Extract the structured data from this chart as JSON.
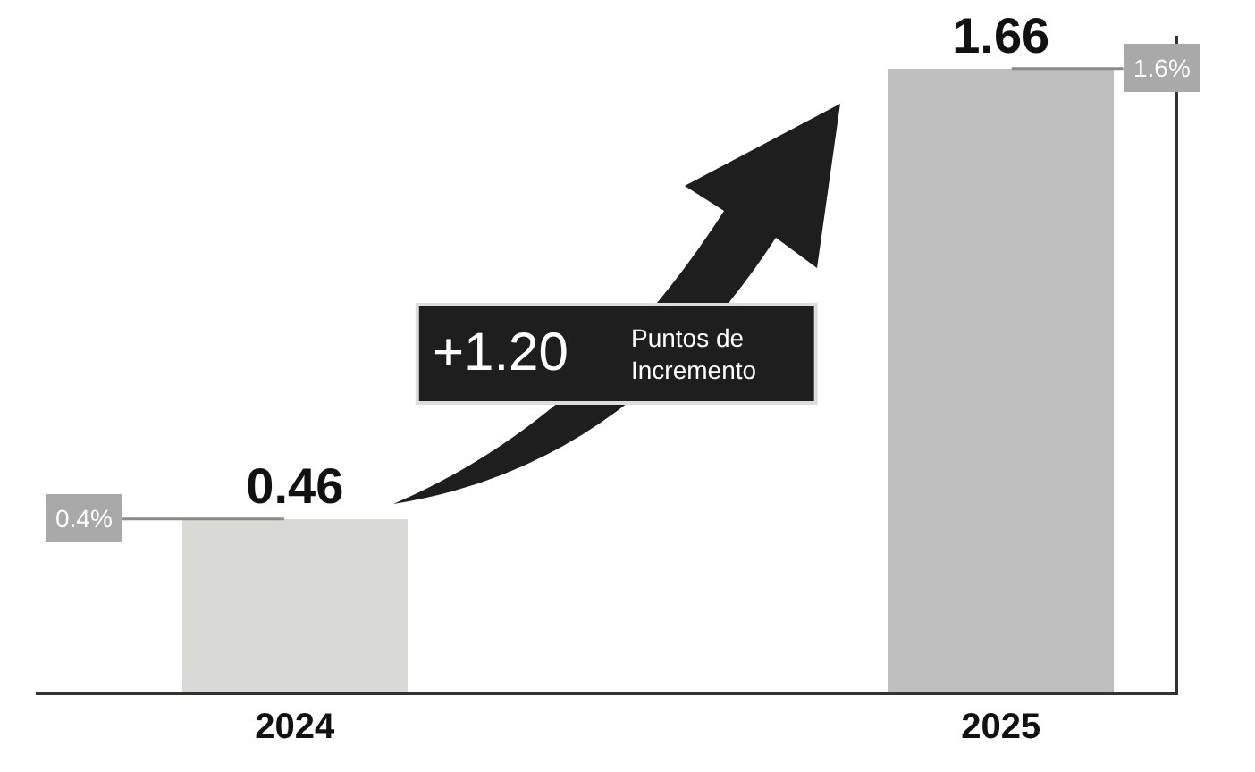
{
  "chart_data": {
    "type": "bar",
    "categories": [
      "2024",
      "2025"
    ],
    "values": [
      0.46,
      1.66
    ],
    "colors": [
      "#d9d9d5",
      "#bfbfbf"
    ],
    "data_labels": true,
    "annotations": [
      {
        "text": "0.4%",
        "x": "2024",
        "y": 0.46
      },
      {
        "text": "1.6%",
        "x": "2025",
        "y": 1.66
      },
      "+1.20",
      "Puntos de\nIncremento"
    ],
    "grid": false,
    "legend": false
  }
}
